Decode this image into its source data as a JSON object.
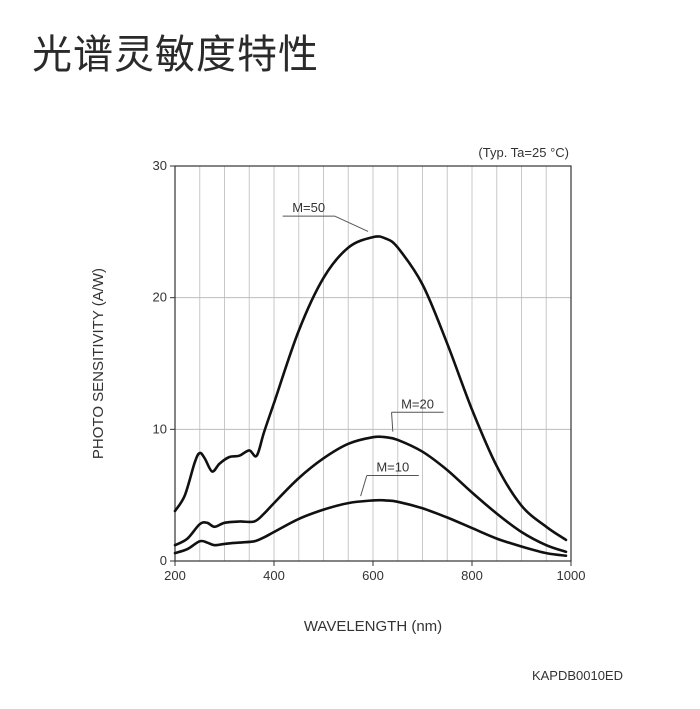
{
  "page": {
    "title": "光谱灵敏度特性"
  },
  "chart_data": {
    "type": "line",
    "xlabel": "WAVELENGTH (nm)",
    "ylabel": "PHOTO SENSITIVITY (A/W)",
    "xlim": [
      200,
      1000
    ],
    "ylim": [
      0,
      30
    ],
    "xticks": [
      200,
      400,
      600,
      800,
      1000
    ],
    "yticks": [
      0,
      10,
      20,
      30
    ],
    "grid": true,
    "condition_note": "(Typ. Ta=25 °C)",
    "figure_code": "KAPDB0010ED",
    "series": [
      {
        "name": "M=50",
        "points": [
          [
            200,
            3.8
          ],
          [
            220,
            5.0
          ],
          [
            240,
            7.5
          ],
          [
            250,
            8.2
          ],
          [
            260,
            7.8
          ],
          [
            275,
            6.8
          ],
          [
            290,
            7.4
          ],
          [
            310,
            7.9
          ],
          [
            330,
            8.0
          ],
          [
            350,
            8.4
          ],
          [
            365,
            8.0
          ],
          [
            380,
            9.8
          ],
          [
            400,
            12.0
          ],
          [
            450,
            17.5
          ],
          [
            500,
            21.5
          ],
          [
            550,
            23.8
          ],
          [
            600,
            24.6
          ],
          [
            625,
            24.5
          ],
          [
            650,
            23.8
          ],
          [
            700,
            21.0
          ],
          [
            750,
            16.5
          ],
          [
            800,
            11.5
          ],
          [
            850,
            7.2
          ],
          [
            900,
            4.2
          ],
          [
            950,
            2.6
          ],
          [
            990,
            1.6
          ]
        ]
      },
      {
        "name": "M=20",
        "points": [
          [
            200,
            1.2
          ],
          [
            225,
            1.7
          ],
          [
            250,
            2.8
          ],
          [
            265,
            2.9
          ],
          [
            280,
            2.6
          ],
          [
            300,
            2.9
          ],
          [
            330,
            3.0
          ],
          [
            360,
            3.0
          ],
          [
            380,
            3.6
          ],
          [
            400,
            4.4
          ],
          [
            450,
            6.3
          ],
          [
            500,
            7.8
          ],
          [
            550,
            8.9
          ],
          [
            600,
            9.4
          ],
          [
            625,
            9.4
          ],
          [
            650,
            9.2
          ],
          [
            700,
            8.3
          ],
          [
            750,
            6.9
          ],
          [
            800,
            5.2
          ],
          [
            850,
            3.6
          ],
          [
            900,
            2.2
          ],
          [
            950,
            1.2
          ],
          [
            990,
            0.7
          ]
        ]
      },
      {
        "name": "M=10",
        "points": [
          [
            200,
            0.6
          ],
          [
            225,
            0.9
          ],
          [
            250,
            1.5
          ],
          [
            265,
            1.4
          ],
          [
            280,
            1.2
          ],
          [
            300,
            1.3
          ],
          [
            330,
            1.4
          ],
          [
            360,
            1.5
          ],
          [
            380,
            1.8
          ],
          [
            400,
            2.2
          ],
          [
            450,
            3.2
          ],
          [
            500,
            3.9
          ],
          [
            550,
            4.4
          ],
          [
            600,
            4.6
          ],
          [
            625,
            4.6
          ],
          [
            650,
            4.5
          ],
          [
            700,
            4.0
          ],
          [
            750,
            3.3
          ],
          [
            800,
            2.5
          ],
          [
            850,
            1.7
          ],
          [
            900,
            1.1
          ],
          [
            950,
            0.6
          ],
          [
            990,
            0.4
          ]
        ]
      }
    ],
    "series_label_positions": [
      {
        "name": "M=50",
        "x": 470,
        "y": 26.5,
        "anchor_x": 590,
        "anchor_y": 24.8
      },
      {
        "name": "M=20",
        "x": 690,
        "y": 11.6,
        "anchor_x": 640,
        "anchor_y": 9.6
      },
      {
        "name": "M=10",
        "x": 640,
        "y": 6.8,
        "anchor_x": 575,
        "anchor_y": 4.7
      }
    ]
  }
}
